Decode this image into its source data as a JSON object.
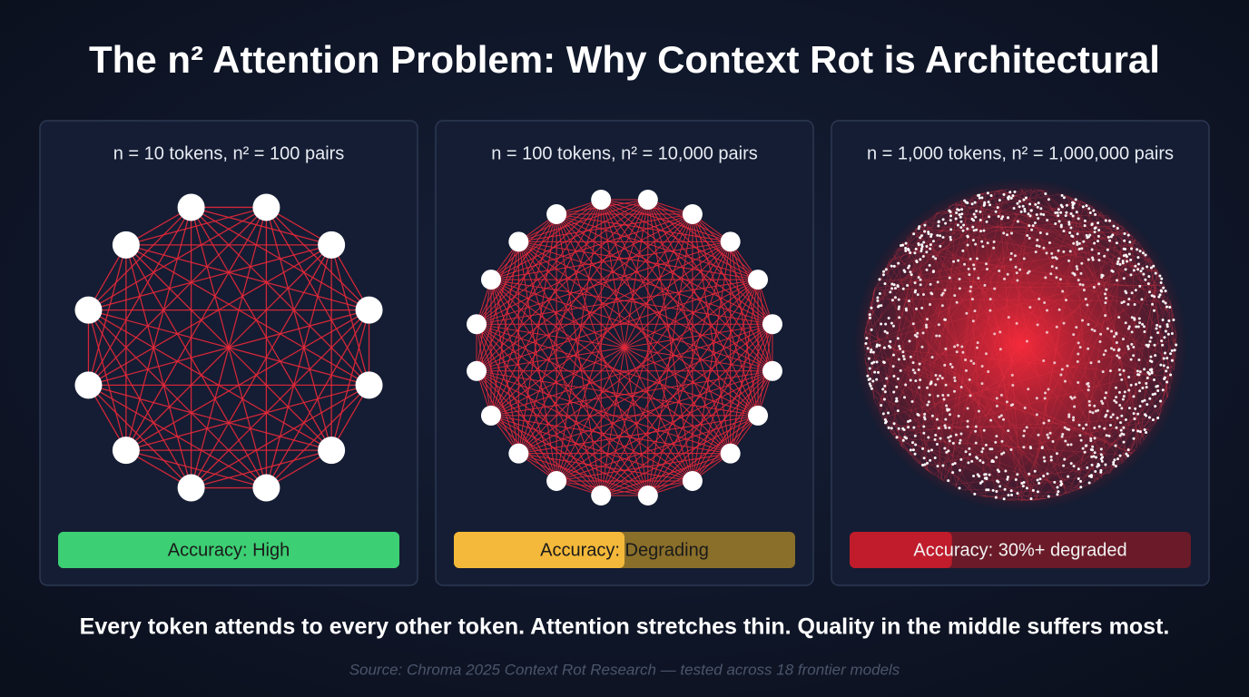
{
  "title": "The n² Attention Problem: Why Context Rot is Architectural",
  "panels": [
    {
      "label": "n = 10 tokens, n² = 100 pairs",
      "accuracy": "Accuracy: High"
    },
    {
      "label": "n = 100 tokens, n² = 10,000 pairs",
      "accuracy": "Accuracy: Degrading"
    },
    {
      "label": "n = 1,000 tokens, n² = 1,000,000 pairs",
      "accuracy": "Accuracy: 30%+ degraded"
    }
  ],
  "footer": {
    "note": "Every token attends to every other token. Attention stretches thin. Quality in the middle suffers most.",
    "source": "Source: Chroma 2025 Context Rot Research — tested across 18 frontier models"
  }
}
